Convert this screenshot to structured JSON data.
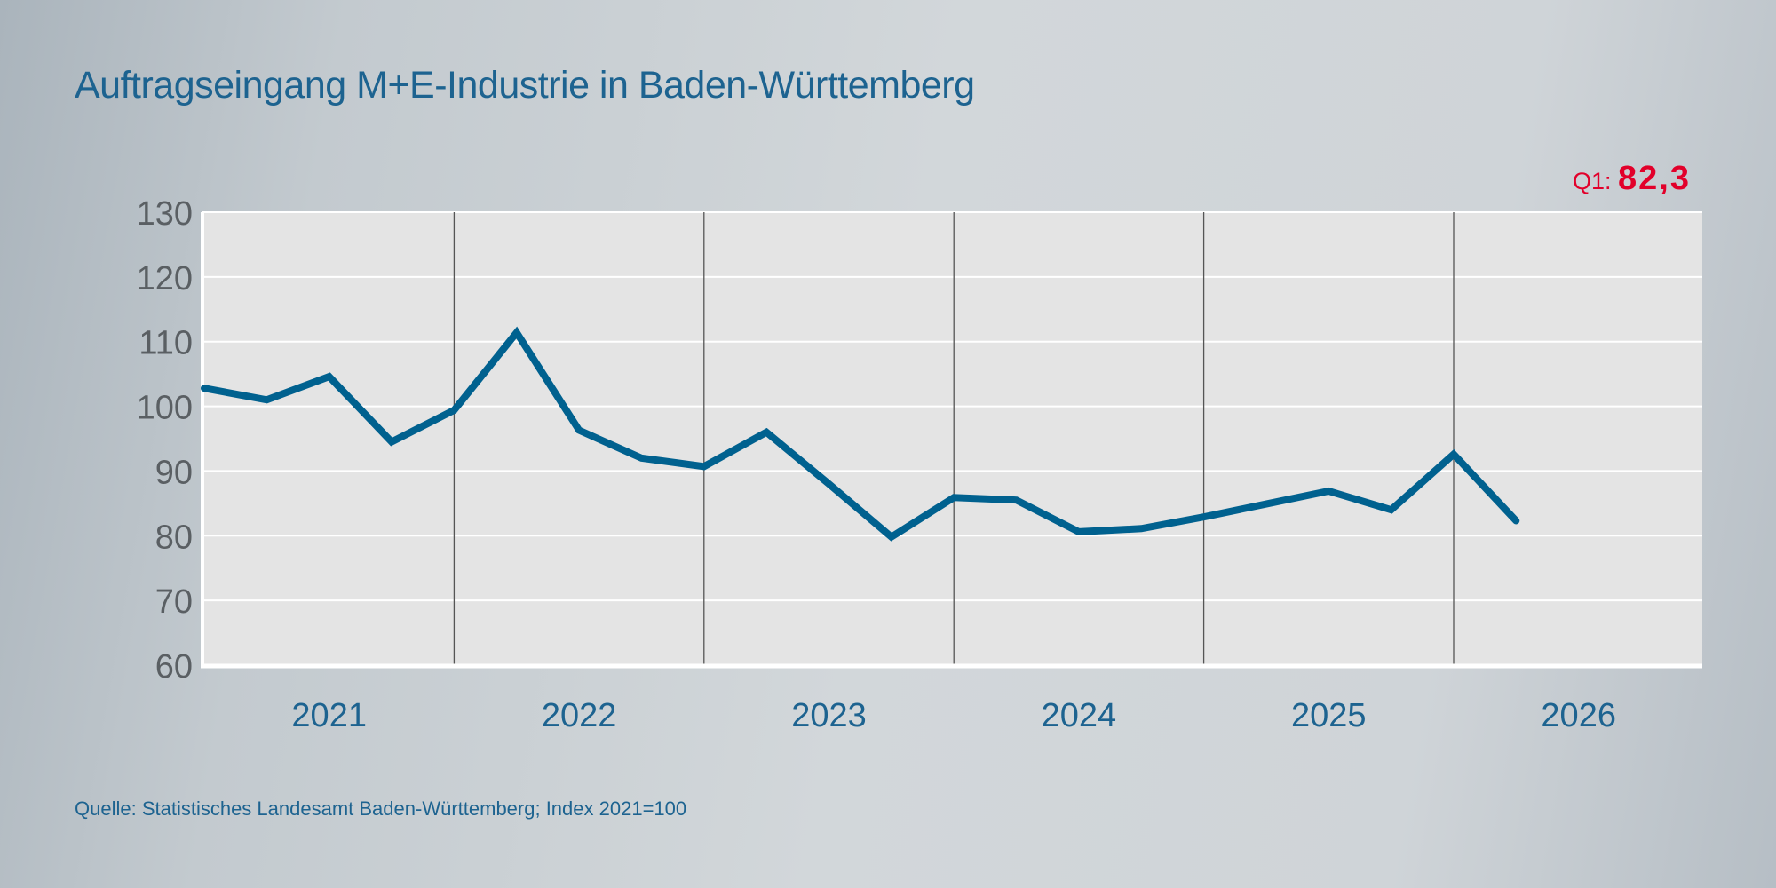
{
  "chart_data": {
    "type": "line",
    "title": "Auftragseingang M+E-Industrie in Baden-Württemberg",
    "annotation": {
      "label": "Q1:",
      "value": "82,3"
    },
    "source": "Quelle: Statistisches Landesamt Baden-Württemberg; Index 2021=100",
    "x_categories": [
      "2021",
      "2022",
      "2023",
      "2024",
      "2025",
      "2026"
    ],
    "y_ticks": [
      60,
      70,
      80,
      90,
      100,
      110,
      120,
      130
    ],
    "ylim": [
      60,
      130
    ],
    "grid": true,
    "x": [
      "Q4 2020",
      "Q1 2021",
      "Q2 2021",
      "Q3 2021",
      "Q4 2021",
      "Q1 2022",
      "Q2 2022",
      "Q3 2022",
      "Q4 2022",
      "Q1 2023",
      "Q2 2023",
      "Q3 2023",
      "Q4 2023",
      "Q1 2024",
      "Q2 2024",
      "Q3 2024",
      "Q4 2024",
      "Q1 2025",
      "Q2 2025",
      "Q3 2025",
      "Q4 2025",
      "Q1 2026"
    ],
    "series": [
      {
        "values": [
          102.8,
          101.0,
          104.6,
          94.5,
          99.4,
          111.4,
          96.3,
          92.0,
          90.7,
          96.0,
          88.0,
          79.8,
          85.9,
          85.5,
          80.6,
          81.1,
          82.9,
          84.9,
          86.9,
          84.0,
          92.6,
          82.3
        ]
      }
    ],
    "colors": {
      "line": "#00618f",
      "annotation": "#e2002a",
      "plot_bg": "#e4e4e4"
    }
  }
}
